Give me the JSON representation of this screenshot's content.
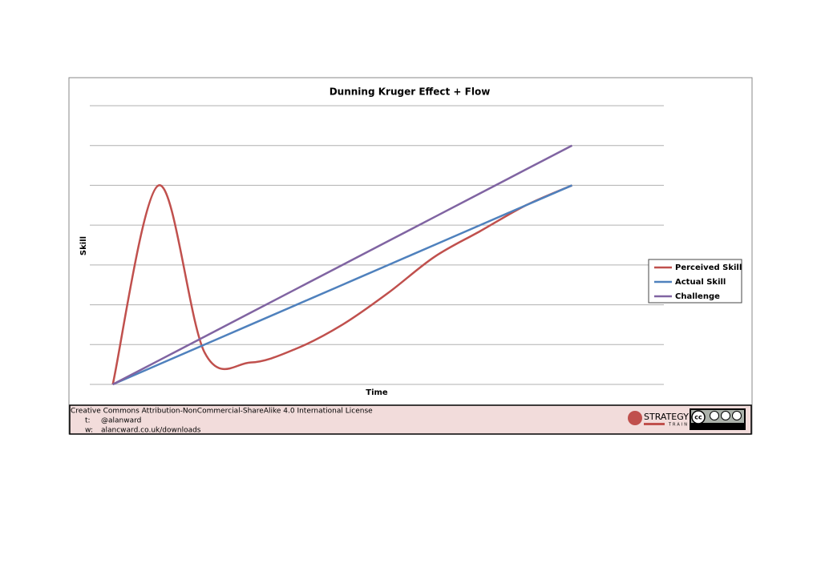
{
  "chart_data": {
    "type": "line",
    "title": "Dunning Kruger Effect + Flow",
    "x_label": "Time",
    "y_label": "Skill",
    "smooth": true,
    "grid": true,
    "legend": "right",
    "x": [
      0,
      1,
      2,
      3,
      4,
      5,
      6,
      7,
      8,
      9,
      10
    ],
    "xlim": [
      -0.5,
      12
    ],
    "ylim": [
      0,
      7
    ],
    "yticks": [
      0,
      1,
      2,
      3,
      4,
      5,
      6,
      7
    ],
    "series": [
      {
        "name": "Perceived Skill",
        "color": "#c0504d",
        "values": [
          0,
          5,
          0.8,
          0.55,
          0.9,
          1.5,
          2.3,
          3.2,
          3.85,
          4.5,
          5
        ]
      },
      {
        "name": "Actual Skill",
        "color": "#4f81bd",
        "values": [
          0,
          0.5,
          1,
          1.5,
          2,
          2.5,
          3,
          3.5,
          4,
          4.5,
          5
        ]
      },
      {
        "name": "Challenge",
        "color": "#8064a2",
        "values": [
          0,
          0.6,
          1.2,
          1.8,
          2.4,
          3,
          3.6,
          4.2,
          4.8,
          5.4,
          6
        ]
      }
    ]
  },
  "footer": {
    "license": "Creative Commons Attribution-NonCommercial-ShareAlike 4.0 International License",
    "twitter_label": "t:",
    "twitter": "@alanward",
    "web_label": "w:",
    "web": "alancward.co.uk/downloads",
    "logo_main": "STRATEGY",
    "logo_sub": "TRAIN",
    "cc": "cc",
    "cc_by": "BY",
    "cc_nc": "NC",
    "cc_sa": "SA"
  }
}
